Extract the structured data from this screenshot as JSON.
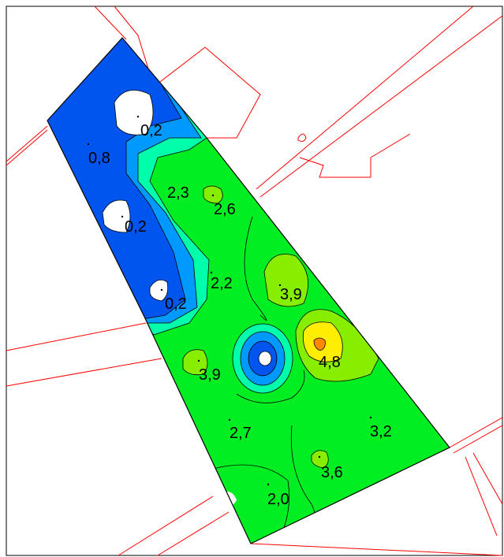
{
  "map": {
    "colors": {
      "very_low": "#0055ee",
      "low": "#0099ff",
      "low_mid": "#00ffaa",
      "mid": "#00ee22",
      "mid_high": "#88ee00",
      "high": "#ffee00",
      "peak": "#ff8800",
      "parcel_lines": "#ff0000",
      "outline": "#000000"
    },
    "labels": [
      {
        "id": "l1",
        "text": "0,2"
      },
      {
        "id": "l2",
        "text": "0,8"
      },
      {
        "id": "l3",
        "text": "2,3"
      },
      {
        "id": "l4",
        "text": "2,6"
      },
      {
        "id": "l5",
        "text": "0,2"
      },
      {
        "id": "l6",
        "text": "2,2"
      },
      {
        "id": "l7",
        "text": "3,9"
      },
      {
        "id": "l8",
        "text": "0,2"
      },
      {
        "id": "l9",
        "text": "4,8"
      },
      {
        "id": "l10",
        "text": "3,9"
      },
      {
        "id": "l11",
        "text": "2,7"
      },
      {
        "id": "l12",
        "text": "3,2"
      },
      {
        "id": "l13",
        "text": "3,6"
      },
      {
        "id": "l14",
        "text": "2,0"
      }
    ]
  }
}
